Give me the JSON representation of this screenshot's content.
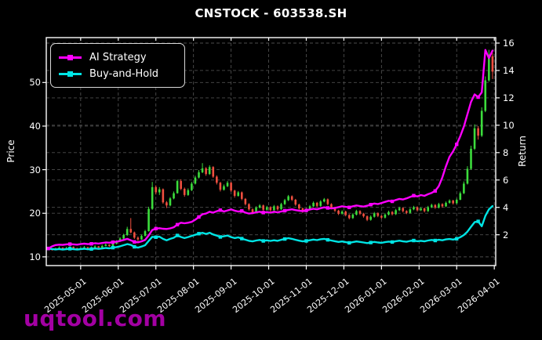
{
  "title": "CNSTOCK - 603538.SH",
  "watermark": "uqtool.com",
  "legend": {
    "items": [
      {
        "label": "AI Strategy",
        "color": "#ff00ff"
      },
      {
        "label": "Buy-and-Hold",
        "color": "#00e5e5"
      }
    ]
  },
  "chart_data": {
    "type": "candlestick_with_lines",
    "title": "CNSTOCK - 603538.SH",
    "grid": true,
    "legend_position": "upper-left",
    "x_axis": {
      "tick_labels": [
        "2025-05-01",
        "2025-06-01",
        "2025-07-01",
        "2025-08-01",
        "2025-09-01",
        "2025-10-01",
        "2025-11-01",
        "2025-12-01",
        "2026-01-01",
        "2026-02-01",
        "2026-03-01",
        "2026-04-01"
      ],
      "tick_positions": [
        9,
        19.5,
        30,
        40.5,
        51,
        61.5,
        72,
        82.5,
        93,
        103.5,
        114,
        124.5
      ],
      "range": [
        -0.6,
        124.9
      ]
    },
    "price_axis": {
      "label": "Price",
      "ticks": [
        10,
        20,
        30,
        40,
        50
      ],
      "range": [
        8.0,
        60.3
      ]
    },
    "return_axis": {
      "label": "Return",
      "ticks": [
        2,
        4,
        6,
        8,
        10,
        12,
        14,
        16
      ],
      "range": [
        -0.25,
        16.4
      ]
    },
    "colors": {
      "up": "#3cdc3c",
      "down": "#ef4f3f",
      "ai_strategy": "#ff00ff",
      "buy_and_hold": "#00e5e5",
      "grid": "#4d4d4d",
      "spine": "#ffffff",
      "background": "#000000"
    },
    "marker_every": 6,
    "candles_ohlc": [
      [
        11.9,
        12.2,
        11.5,
        11.8
      ],
      [
        11.8,
        12.0,
        11.4,
        11.6
      ],
      [
        11.6,
        12.1,
        11.5,
        11.9
      ],
      [
        11.9,
        12.4,
        11.8,
        12.1
      ],
      [
        12.1,
        12.2,
        11.6,
        11.8
      ],
      [
        11.8,
        12.3,
        11.7,
        12.0
      ],
      [
        12.0,
        12.6,
        11.9,
        12.3
      ],
      [
        12.3,
        12.4,
        11.8,
        12.0
      ],
      [
        12.0,
        12.1,
        11.5,
        11.7
      ],
      [
        11.7,
        12.2,
        11.6,
        12.0
      ],
      [
        12.0,
        12.5,
        11.9,
        12.2
      ],
      [
        12.2,
        12.3,
        11.7,
        11.9
      ],
      [
        11.9,
        12.4,
        11.8,
        12.1
      ],
      [
        12.1,
        12.7,
        12.0,
        12.4
      ],
      [
        12.4,
        12.5,
        11.9,
        12.1
      ],
      [
        12.1,
        12.8,
        12.0,
        12.5
      ],
      [
        12.5,
        13.1,
        12.4,
        12.8
      ],
      [
        12.8,
        12.9,
        12.3,
        12.5
      ],
      [
        12.5,
        13.3,
        12.4,
        13.0
      ],
      [
        13.0,
        13.8,
        12.9,
        13.5
      ],
      [
        13.5,
        14.5,
        13.4,
        14.2
      ],
      [
        14.2,
        15.3,
        14.0,
        15.0
      ],
      [
        15.0,
        16.9,
        14.8,
        16.4
      ],
      [
        16.4,
        18.9,
        15.4,
        15.6
      ],
      [
        15.6,
        15.8,
        14.1,
        14.4
      ],
      [
        14.4,
        14.7,
        13.6,
        14.0
      ],
      [
        14.0,
        15.1,
        13.9,
        14.8
      ],
      [
        14.8,
        16.2,
        14.7,
        15.9
      ],
      [
        15.9,
        21.5,
        15.8,
        21.0
      ],
      [
        21.0,
        27.2,
        20.8,
        26.0
      ],
      [
        26.0,
        26.4,
        24.3,
        24.8
      ],
      [
        24.8,
        26.0,
        24.2,
        25.5
      ],
      [
        25.5,
        25.7,
        22.2,
        22.5
      ],
      [
        22.5,
        22.8,
        21.2,
        21.8
      ],
      [
        21.8,
        23.7,
        21.6,
        23.4
      ],
      [
        23.4,
        25.0,
        23.2,
        24.6
      ],
      [
        24.6,
        27.7,
        24.5,
        27.4
      ],
      [
        27.4,
        27.8,
        25.3,
        25.6
      ],
      [
        25.6,
        25.9,
        23.8,
        24.2
      ],
      [
        24.2,
        25.7,
        24.0,
        25.3
      ],
      [
        25.3,
        27.2,
        25.1,
        26.8
      ],
      [
        26.8,
        28.6,
        26.6,
        28.2
      ],
      [
        28.2,
        29.9,
        28.0,
        29.4
      ],
      [
        29.4,
        31.5,
        29.2,
        30.3
      ],
      [
        30.3,
        30.6,
        28.6,
        29.0
      ],
      [
        29.0,
        31.0,
        28.8,
        30.6
      ],
      [
        30.6,
        30.8,
        28.1,
        28.4
      ],
      [
        28.4,
        28.7,
        26.6,
        27.0
      ],
      [
        27.0,
        27.2,
        25.0,
        25.4
      ],
      [
        25.4,
        26.6,
        25.2,
        26.2
      ],
      [
        26.2,
        27.4,
        26.0,
        27.0
      ],
      [
        27.0,
        27.2,
        24.9,
        25.2
      ],
      [
        25.2,
        25.4,
        23.6,
        24.0
      ],
      [
        24.0,
        25.1,
        23.8,
        24.8
      ],
      [
        24.8,
        25.0,
        23.0,
        23.3
      ],
      [
        23.3,
        23.5,
        21.8,
        22.1
      ],
      [
        22.1,
        22.3,
        20.6,
        20.9
      ],
      [
        20.9,
        21.1,
        19.8,
        20.2
      ],
      [
        20.2,
        21.6,
        20.0,
        21.3
      ],
      [
        21.3,
        22.1,
        21.1,
        21.8
      ],
      [
        21.8,
        22.0,
        20.5,
        20.8
      ],
      [
        20.8,
        21.7,
        20.6,
        21.4
      ],
      [
        21.4,
        21.6,
        20.4,
        20.7
      ],
      [
        20.7,
        21.9,
        20.5,
        21.6
      ],
      [
        21.6,
        21.8,
        20.6,
        20.9
      ],
      [
        20.9,
        22.4,
        20.8,
        22.1
      ],
      [
        22.1,
        23.3,
        21.9,
        23.0
      ],
      [
        23.0,
        24.2,
        22.8,
        23.9
      ],
      [
        23.9,
        24.1,
        22.8,
        23.1
      ],
      [
        23.1,
        23.3,
        21.7,
        22.0
      ],
      [
        22.0,
        22.2,
        20.8,
        21.1
      ],
      [
        21.1,
        21.3,
        20.1,
        20.4
      ],
      [
        20.4,
        21.2,
        20.2,
        20.9
      ],
      [
        20.9,
        21.9,
        20.7,
        21.6
      ],
      [
        21.6,
        22.7,
        21.4,
        22.4
      ],
      [
        22.4,
        22.6,
        21.4,
        21.7
      ],
      [
        21.7,
        23.0,
        21.5,
        22.7
      ],
      [
        22.7,
        23.5,
        22.5,
        23.2
      ],
      [
        23.2,
        23.4,
        21.8,
        22.1
      ],
      [
        22.1,
        22.3,
        21.0,
        21.3
      ],
      [
        21.3,
        21.5,
        20.3,
        20.6
      ],
      [
        20.6,
        20.8,
        19.6,
        19.9
      ],
      [
        19.9,
        20.7,
        19.7,
        20.4
      ],
      [
        20.4,
        20.6,
        19.3,
        19.6
      ],
      [
        19.6,
        19.8,
        18.6,
        18.9
      ],
      [
        18.9,
        20.0,
        18.7,
        19.7
      ],
      [
        19.7,
        20.8,
        19.5,
        20.5
      ],
      [
        20.5,
        20.7,
        19.6,
        19.9
      ],
      [
        19.9,
        20.1,
        19.0,
        19.3
      ],
      [
        19.3,
        19.5,
        18.2,
        18.5
      ],
      [
        18.5,
        19.5,
        18.3,
        19.2
      ],
      [
        19.2,
        20.3,
        19.0,
        20.0
      ],
      [
        20.0,
        20.2,
        19.1,
        19.4
      ],
      [
        19.4,
        19.6,
        18.7,
        19.0
      ],
      [
        19.0,
        20.0,
        18.8,
        19.7
      ],
      [
        19.7,
        20.6,
        19.5,
        20.3
      ],
      [
        20.3,
        20.5,
        19.5,
        19.8
      ],
      [
        19.8,
        21.0,
        19.6,
        20.7
      ],
      [
        20.7,
        21.5,
        20.5,
        21.2
      ],
      [
        21.2,
        21.4,
        20.2,
        20.5
      ],
      [
        20.5,
        20.7,
        19.8,
        20.1
      ],
      [
        20.1,
        21.2,
        19.9,
        20.9
      ],
      [
        20.9,
        21.7,
        20.7,
        21.4
      ],
      [
        21.4,
        21.6,
        20.4,
        20.7
      ],
      [
        20.7,
        21.4,
        20.5,
        21.1
      ],
      [
        21.1,
        21.3,
        20.2,
        20.5
      ],
      [
        20.5,
        21.7,
        20.3,
        21.4
      ],
      [
        21.4,
        22.2,
        21.2,
        21.9
      ],
      [
        21.9,
        22.1,
        21.0,
        21.3
      ],
      [
        21.3,
        22.4,
        21.1,
        22.1
      ],
      [
        22.1,
        22.3,
        21.3,
        21.6
      ],
      [
        21.6,
        22.7,
        21.4,
        22.4
      ],
      [
        22.4,
        23.2,
        22.2,
        22.9
      ],
      [
        22.9,
        23.1,
        22.0,
        22.3
      ],
      [
        22.3,
        23.4,
        22.1,
        23.1
      ],
      [
        23.1,
        25.0,
        23.0,
        24.6
      ],
      [
        24.6,
        27.3,
        24.4,
        26.8
      ],
      [
        26.8,
        30.8,
        26.6,
        30.2
      ],
      [
        30.2,
        35.5,
        30.0,
        34.8
      ],
      [
        34.8,
        40.4,
        34.5,
        39.5
      ],
      [
        39.5,
        40.0,
        36.9,
        37.8
      ],
      [
        37.8,
        44.3,
        37.5,
        43.5
      ],
      [
        43.5,
        51.4,
        43.2,
        50.5
      ],
      [
        50.5,
        57.5,
        50.2,
        56.0
      ],
      [
        56.0,
        56.8,
        50.8,
        52.5
      ]
    ],
    "series": [
      {
        "name": "AI Strategy",
        "axis": "return",
        "values": [
          1.0,
          1.15,
          1.25,
          1.28,
          1.26,
          1.3,
          1.32,
          1.3,
          1.28,
          1.32,
          1.35,
          1.32,
          1.34,
          1.38,
          1.36,
          1.4,
          1.44,
          1.42,
          1.46,
          1.5,
          1.55,
          1.62,
          1.7,
          1.6,
          1.48,
          1.45,
          1.52,
          1.62,
          1.95,
          2.35,
          2.45,
          2.48,
          2.44,
          2.42,
          2.47,
          2.55,
          2.74,
          2.88,
          2.84,
          2.88,
          2.94,
          3.1,
          3.3,
          3.5,
          3.55,
          3.68,
          3.62,
          3.72,
          3.8,
          3.7,
          3.78,
          3.85,
          3.76,
          3.7,
          3.74,
          3.62,
          3.55,
          3.58,
          3.64,
          3.68,
          3.62,
          3.66,
          3.62,
          3.68,
          3.64,
          3.7,
          3.76,
          3.82,
          3.86,
          3.8,
          3.76,
          3.72,
          3.78,
          3.84,
          3.9,
          3.86,
          3.94,
          4.0,
          3.96,
          3.92,
          3.96,
          4.02,
          4.08,
          4.04,
          4.0,
          4.08,
          4.14,
          4.1,
          4.06,
          4.12,
          4.2,
          4.28,
          4.24,
          4.32,
          4.4,
          4.48,
          4.44,
          4.54,
          4.62,
          4.58,
          4.66,
          4.76,
          4.86,
          4.8,
          4.9,
          4.84,
          4.96,
          5.06,
          5.2,
          5.55,
          6.2,
          7.0,
          7.7,
          8.1,
          8.6,
          9.2,
          9.9,
          10.8,
          11.7,
          12.25,
          12.05,
          12.4,
          15.5,
          14.9,
          15.45
        ]
      },
      {
        "name": "Buy-and-Hold",
        "axis": "return",
        "values": [
          1.0,
          0.96,
          0.93,
          0.96,
          0.92,
          0.95,
          0.98,
          0.95,
          0.92,
          0.95,
          0.98,
          0.94,
          0.96,
          1.0,
          0.97,
          1.0,
          1.04,
          1.01,
          1.06,
          1.1,
          1.16,
          1.24,
          1.32,
          1.26,
          1.12,
          1.06,
          1.14,
          1.24,
          1.55,
          1.85,
          1.82,
          1.86,
          1.7,
          1.6,
          1.7,
          1.78,
          1.95,
          1.84,
          1.76,
          1.83,
          1.92,
          2.0,
          2.08,
          2.14,
          2.06,
          2.15,
          2.02,
          1.94,
          1.84,
          1.89,
          1.94,
          1.83,
          1.76,
          1.81,
          1.72,
          1.64,
          1.56,
          1.52,
          1.58,
          1.62,
          1.55,
          1.59,
          1.55,
          1.6,
          1.56,
          1.63,
          1.69,
          1.75,
          1.7,
          1.63,
          1.57,
          1.52,
          1.55,
          1.6,
          1.65,
          1.61,
          1.67,
          1.7,
          1.63,
          1.58,
          1.53,
          1.48,
          1.51,
          1.46,
          1.41,
          1.46,
          1.51,
          1.48,
          1.44,
          1.39,
          1.43,
          1.48,
          1.44,
          1.41,
          1.46,
          1.5,
          1.47,
          1.53,
          1.57,
          1.52,
          1.49,
          1.55,
          1.58,
          1.53,
          1.56,
          1.52,
          1.58,
          1.62,
          1.58,
          1.63,
          1.6,
          1.66,
          1.69,
          1.65,
          1.71,
          1.82,
          1.98,
          2.23,
          2.58,
          2.92,
          2.98,
          2.62,
          3.38,
          3.85,
          4.1
        ]
      }
    ]
  }
}
